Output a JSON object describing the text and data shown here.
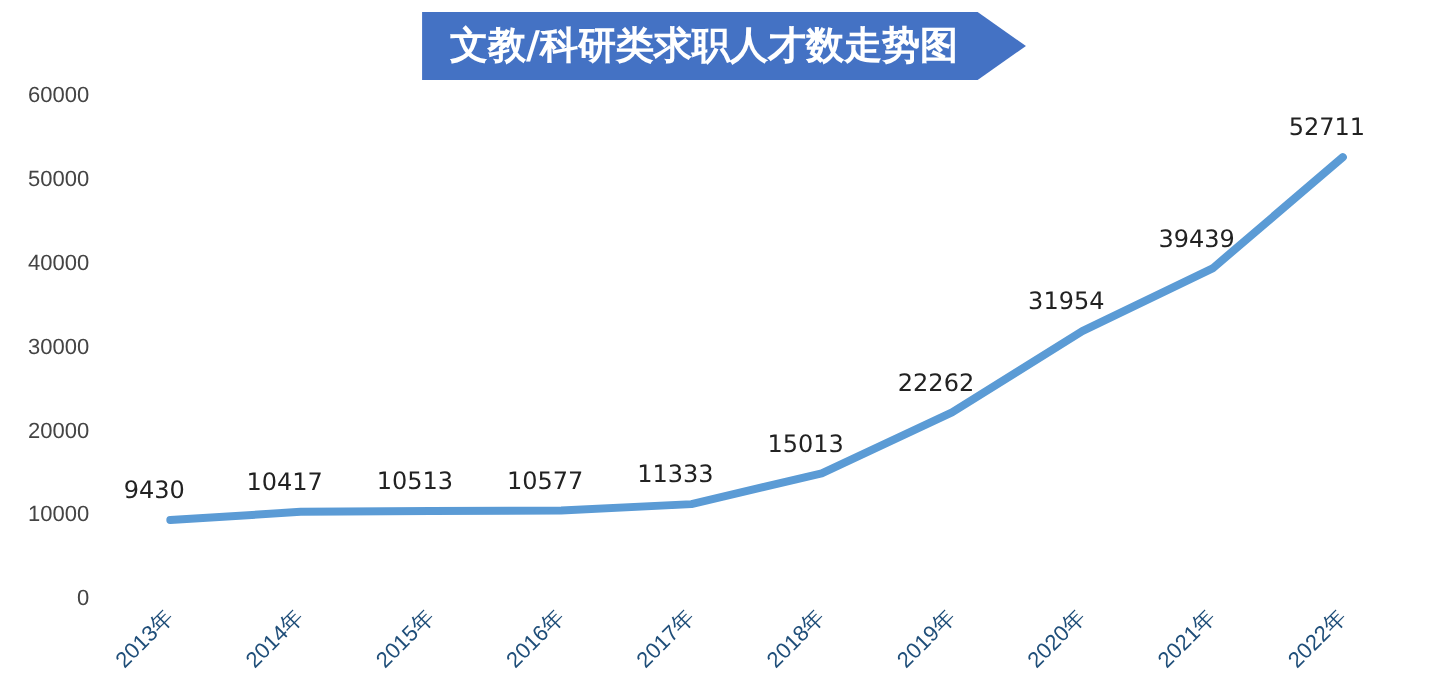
{
  "chart_data": {
    "type": "line",
    "title": "文教/科研类求职人才数走势图",
    "categories": [
      "2013年",
      "2014年",
      "2015年",
      "2016年",
      "2017年",
      "2018年",
      "2019年",
      "2020年",
      "2021年",
      "2022年"
    ],
    "series": [
      {
        "color": "#5b9bd5",
        "values": [
          9430,
          10417,
          10513,
          10577,
          11333,
          15013,
          22262,
          31954,
          39439,
          52711
        ]
      }
    ],
    "ylim": [
      0,
      60000
    ],
    "yticks": [
      0,
      10000,
      20000,
      30000,
      40000,
      50000,
      60000
    ],
    "grid": false,
    "legend": false,
    "marker": "none",
    "line_style": "solid",
    "data_labels": true
  }
}
